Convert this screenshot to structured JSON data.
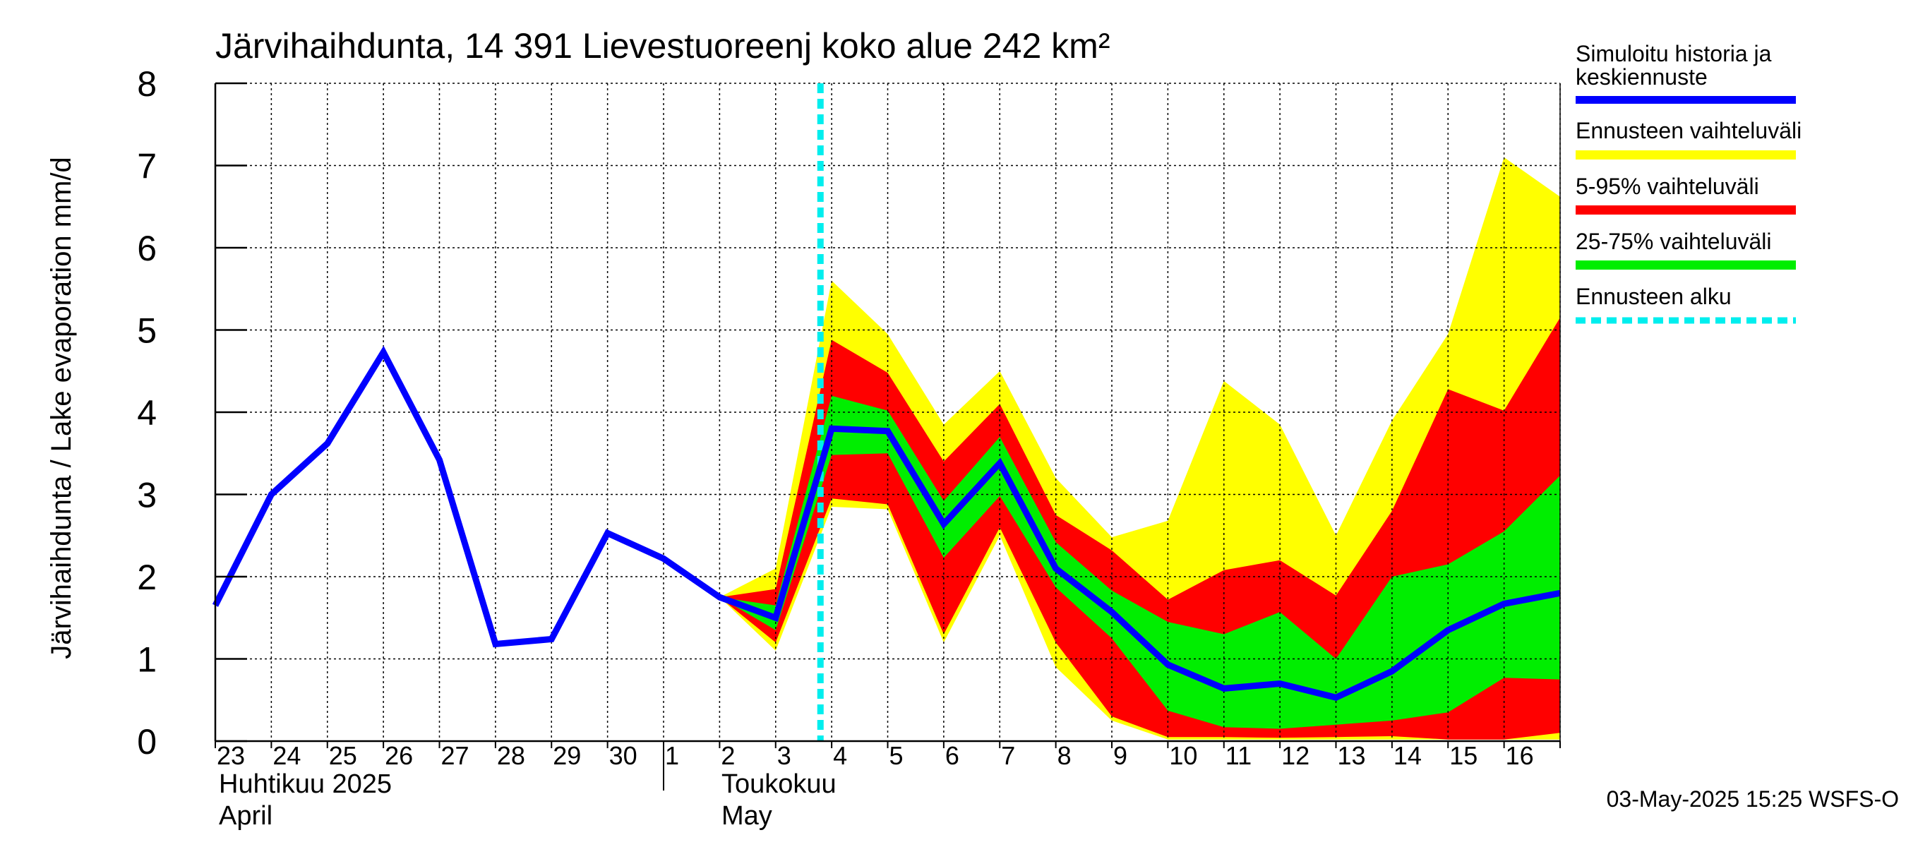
{
  "chart_data": {
    "type": "area",
    "title": "Järvihaihdunta, 14 391 Lievestuoreenj koko alue 242 km²",
    "ylabel": "Järvihaihdunta / Lake evaporation   mm/d",
    "ylim": [
      0,
      8
    ],
    "yticks": [
      "0",
      "1",
      "2",
      "3",
      "4",
      "5",
      "6",
      "7",
      "8"
    ],
    "xticks": [
      "23",
      "24",
      "25",
      "26",
      "27",
      "28",
      "29",
      "30",
      "1",
      "2",
      "3",
      "4",
      "5",
      "6",
      "7",
      "8",
      "9",
      "10",
      "11",
      "12",
      "13",
      "14",
      "15",
      "16"
    ],
    "month_labels": [
      {
        "line1": "Huhtikuu  2025",
        "line2": "April"
      },
      {
        "line1": "Toukokuu",
        "line2": "May"
      }
    ],
    "forecast_start_day": 10.8,
    "grid": true,
    "legend_position": "right",
    "legend": [
      {
        "label": "Simuloitu historia ja keskiennuste",
        "color": "#0000ff",
        "style": "solid"
      },
      {
        "label": "Ennusteen vaihteluväli",
        "color": "#ffff00",
        "style": "solid"
      },
      {
        "label": "5-95% vaihteluväli",
        "color": "#ff0000",
        "style": "solid"
      },
      {
        "label": "25-75% vaihteluväli",
        "color": "#00ee00",
        "style": "solid"
      },
      {
        "label": "Ennusteen alku",
        "color": "#00eeee",
        "style": "dashed"
      }
    ],
    "series": [
      {
        "role": "median",
        "x": [
          0,
          1,
          2,
          3,
          4,
          5,
          6,
          7,
          8,
          9,
          10,
          11,
          12,
          13,
          14,
          15,
          16,
          17,
          18,
          19,
          20,
          21,
          22,
          23,
          24
        ],
        "values": [
          1.65,
          3.0,
          3.62,
          4.73,
          3.42,
          1.18,
          1.24,
          2.53,
          2.22,
          1.75,
          1.5,
          3.8,
          3.77,
          2.64,
          3.38,
          2.1,
          1.57,
          0.93,
          0.64,
          0.7,
          0.53,
          0.85,
          1.35,
          1.67,
          1.8
        ]
      },
      {
        "role": "range",
        "x": [
          9,
          10,
          11,
          12,
          13,
          14,
          15,
          16,
          17,
          18,
          19,
          20,
          21,
          22,
          23,
          24
        ],
        "lower": [
          1.75,
          1.1,
          2.85,
          2.82,
          1.2,
          2.5,
          0.9,
          0.25,
          0.02,
          0.02,
          0.02,
          0.02,
          0.02,
          0.02,
          0.02,
          0.02
        ],
        "upper": [
          1.75,
          2.1,
          5.6,
          4.95,
          3.85,
          4.5,
          3.2,
          2.48,
          2.68,
          4.38,
          3.85,
          2.5,
          3.9,
          4.95,
          7.1,
          6.62
        ]
      },
      {
        "role": "p5_p95",
        "x": [
          9,
          10,
          11,
          12,
          13,
          14,
          15,
          16,
          17,
          18,
          19,
          20,
          21,
          22,
          23,
          24
        ],
        "lower": [
          1.75,
          1.2,
          2.95,
          2.88,
          1.3,
          2.6,
          1.2,
          0.3,
          0.05,
          0.05,
          0.04,
          0.05,
          0.06,
          0.02,
          0.02,
          0.1
        ],
        "upper": [
          1.75,
          1.85,
          4.88,
          4.48,
          3.4,
          4.1,
          2.75,
          2.32,
          1.72,
          2.08,
          2.2,
          1.77,
          2.8,
          4.28,
          4.02,
          5.15
        ]
      },
      {
        "role": "p25_p75",
        "x": [
          9,
          10,
          11,
          12,
          13,
          14,
          15,
          16,
          17,
          18,
          19,
          20,
          21,
          22,
          23,
          24
        ],
        "lower": [
          1.75,
          1.35,
          3.48,
          3.5,
          2.23,
          2.98,
          1.87,
          1.25,
          0.37,
          0.17,
          0.15,
          0.2,
          0.25,
          0.35,
          0.77,
          0.75
        ],
        "upper": [
          1.75,
          1.65,
          4.2,
          4.02,
          2.92,
          3.7,
          2.42,
          1.83,
          1.45,
          1.3,
          1.57,
          1.0,
          2.0,
          2.15,
          2.55,
          3.23
        ]
      }
    ]
  },
  "footer": {
    "timestamp": "03-May-2025 15:25 WSFS-O"
  }
}
